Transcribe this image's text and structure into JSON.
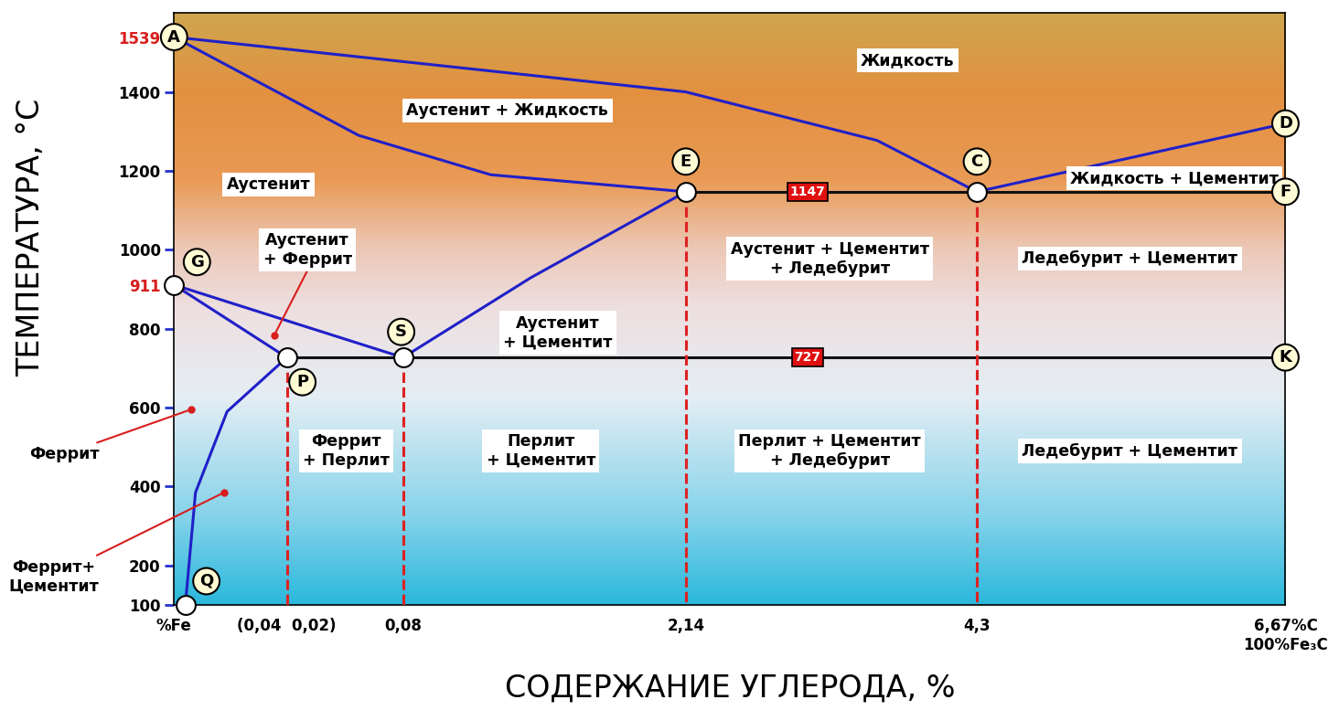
{
  "chart_data": {
    "type": "phase_diagram",
    "x_label": "СОДЕРЖАНИЕ УГЛЕРОДА, %",
    "y_label": "ТЕМПЕРАТУРА, °C",
    "xlim": [
      0,
      6.67
    ],
    "ylim": [
      100,
      1600
    ],
    "xticks": [
      {
        "value": 0,
        "label": "%Fe"
      },
      {
        "value": 0.02,
        "label": "(0,04  0,02)"
      },
      {
        "value": 0.08,
        "label": "0,08"
      },
      {
        "value": 2.14,
        "label": "2,14"
      },
      {
        "value": 4.3,
        "label": "4,3"
      },
      {
        "value": 6.67,
        "label": "6,67%C\n100%Fe₃C"
      }
    ],
    "yticks": [
      100,
      200,
      400,
      600,
      800,
      911,
      1000,
      1200,
      1400,
      1539
    ],
    "points": [
      {
        "name": "A",
        "x": 0,
        "y": 1539
      },
      {
        "name": "D",
        "x": 6.67,
        "y": 1320
      },
      {
        "name": "E",
        "x": 2.14,
        "y": 1147
      },
      {
        "name": "C",
        "x": 4.3,
        "y": 1147
      },
      {
        "name": "F",
        "x": 6.67,
        "y": 1147
      },
      {
        "name": "G",
        "x": 0,
        "y": 911
      },
      {
        "name": "S",
        "x": 0.08,
        "y": 727
      },
      {
        "name": "P",
        "x": 0.02,
        "y": 727
      },
      {
        "name": "K",
        "x": 6.67,
        "y": 727
      },
      {
        "name": "Q",
        "x": 0.002,
        "y": 100
      }
    ],
    "lines": [
      {
        "x": [
          0,
          2.14,
          3.56,
          4.3
        ],
        "y": [
          1539,
          1400,
          1277,
          1147
        ],
        "color": "#2020c8",
        "line_style": "solid"
      },
      {
        "x": [
          4.3,
          6.67
        ],
        "y": [
          1147,
          1320
        ],
        "color": "#2020c8",
        "line_style": "solid"
      },
      {
        "x": [
          0,
          0.057,
          0.72,
          2.14
        ],
        "y": [
          1539,
          1290,
          1190,
          1147
        ],
        "color": "#2020c8",
        "line_style": "solid"
      },
      {
        "x": [
          0,
          0.08
        ],
        "y": [
          911,
          727
        ],
        "color": "#2020c8",
        "line_style": "solid"
      },
      {
        "x": [
          0,
          0.02
        ],
        "y": [
          911,
          727
        ],
        "color": "#2020c8",
        "line_style": "solid"
      },
      {
        "x": [
          0.08,
          1.01,
          2.14
        ],
        "y": [
          727,
          929,
          1147
        ],
        "color": "#2020c8",
        "line_style": "solid"
      },
      {
        "x": [
          0.02,
          0.0094,
          0.0038,
          0.002
        ],
        "y": [
          727,
          590,
          385,
          100
        ],
        "color": "#2020c8",
        "line_style": "solid"
      },
      {
        "x": [
          2.14,
          6.67
        ],
        "y": [
          1147,
          1147
        ],
        "color": "#111111",
        "line_style": "solid"
      },
      {
        "x": [
          0.02,
          6.67
        ],
        "y": [
          727,
          727
        ],
        "color": "#111111",
        "line_style": "solid"
      },
      {
        "x": [
          0.02,
          0.02
        ],
        "y": [
          727,
          100
        ],
        "color": "#dd2222",
        "line_style": "dashed"
      },
      {
        "x": [
          0.08,
          0.08
        ],
        "y": [
          727,
          100
        ],
        "color": "#dd2222",
        "line_style": "dashed"
      },
      {
        "x": [
          2.14,
          2.14
        ],
        "y": [
          1147,
          100
        ],
        "color": "#dd2222",
        "line_style": "dashed"
      },
      {
        "x": [
          4.3,
          4.3
        ],
        "y": [
          1147,
          100
        ],
        "color": "#dd2222",
        "line_style": "dashed"
      }
    ],
    "isotherm_labels": [
      {
        "value": 1147
      },
      {
        "value": 727
      }
    ],
    "regions": [
      {
        "label": "Жидкость"
      },
      {
        "label": "Аустенит + Жидкость"
      },
      {
        "label": "Аустенит"
      },
      {
        "label": "Аустенит\n+ Феррит"
      },
      {
        "label": "Аустенит\n+ Цементит"
      },
      {
        "label": "Аустенит + Цементит\n+ Ледебурит"
      },
      {
        "label": "Ледебурит + Цементит"
      },
      {
        "label": "Жидкость + Цементит"
      },
      {
        "label": "Феррит\n+ Перлит"
      },
      {
        "label": "Перлит\n+ Цементит"
      },
      {
        "label": "Перлит + Цементит\n+ Ледебурит"
      },
      {
        "label": "Ледебурит + Цементит"
      }
    ],
    "annotations": [
      {
        "label": "Феррит"
      },
      {
        "label": "Феррит+\nЦементит"
      }
    ]
  }
}
